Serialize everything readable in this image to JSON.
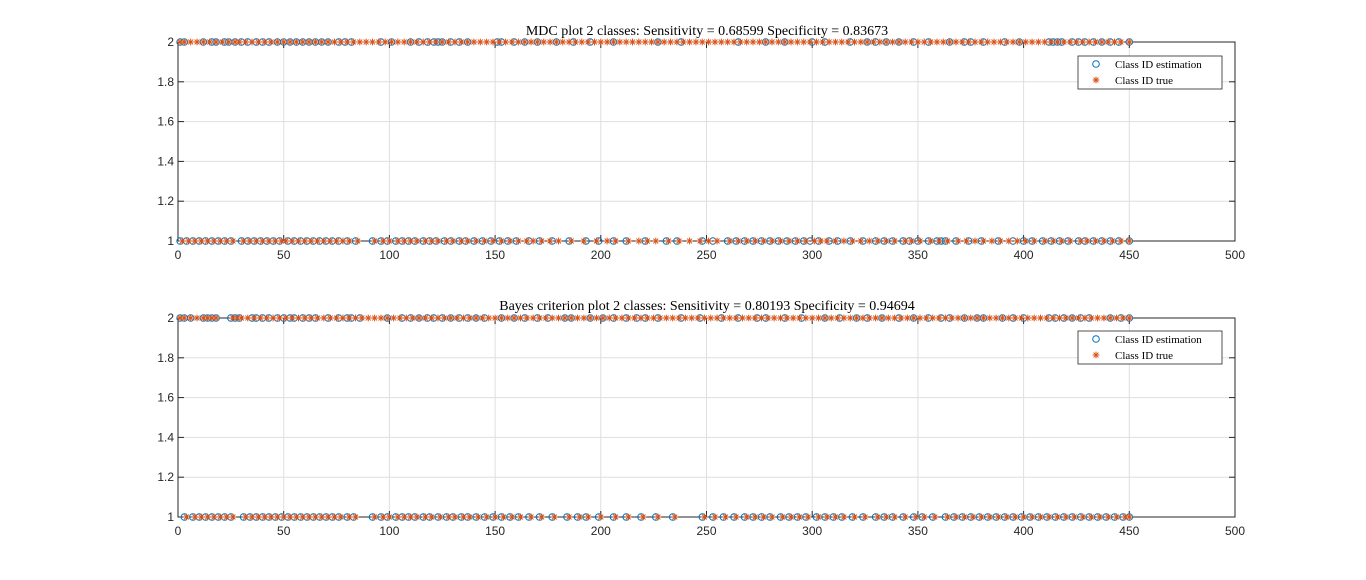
{
  "colors": {
    "estimation": "#0072BD",
    "true": "#D95319",
    "grid": "#DFDFDF",
    "axis": "#262626"
  },
  "legend": {
    "estimation_label": "Class ID estimation",
    "true_label": "Class ID true",
    "placement": "top-right"
  },
  "chart_data": [
    {
      "type": "scatter",
      "title": "MDC plot 2 classes: Sensitivity = 0.68599 Specificity = 0.83673",
      "xlim": [
        0,
        500
      ],
      "ylim": [
        1,
        2
      ],
      "xticks": [
        "0",
        "50",
        "100",
        "150",
        "200",
        "250",
        "300",
        "350",
        "400",
        "450",
        "500"
      ],
      "yticks": [
        "1",
        "1.2",
        "1.4",
        "1.6",
        "1.8",
        "2"
      ],
      "grid": true,
      "legend_placement": "top-right",
      "series": [
        {
          "name": "Class ID estimation",
          "marker": "circle",
          "class2_x": [
            1,
            3,
            12,
            16,
            18,
            22,
            24,
            27,
            30,
            33,
            37,
            40,
            43,
            47,
            50,
            53,
            56,
            59,
            62,
            65,
            68,
            71,
            76,
            79,
            82,
            96,
            101,
            110,
            114,
            118,
            121,
            123,
            125,
            129,
            133,
            137,
            151,
            153,
            159,
            164,
            170,
            179,
            187,
            195,
            206,
            227,
            238,
            265,
            278,
            287,
            300,
            306,
            318,
            326,
            330,
            335,
            341,
            348,
            355,
            365,
            372,
            375,
            381,
            391,
            398,
            412,
            414,
            416,
            418,
            423,
            426,
            429,
            433,
            437,
            441,
            445,
            450
          ],
          "class1_x": [
            1,
            4,
            7,
            10,
            13,
            16,
            19,
            22,
            25,
            30,
            33,
            36,
            39,
            42,
            45,
            48,
            52,
            55,
            58,
            61,
            64,
            67,
            70,
            73,
            76,
            80,
            84,
            92,
            96,
            99,
            103,
            106,
            109,
            112,
            116,
            119,
            122,
            126,
            129,
            133,
            136,
            140,
            144,
            148,
            152,
            156,
            160,
            166,
            171,
            177,
            185,
            193,
            199,
            206,
            212,
            221,
            231,
            236,
            248,
            253,
            260,
            264,
            268,
            272,
            276,
            280,
            284,
            288,
            292,
            296,
            299,
            303,
            308,
            312,
            318,
            324,
            330,
            334,
            338,
            343,
            346,
            350,
            355,
            359,
            361,
            363,
            368,
            374,
            380,
            388,
            395,
            400,
            404,
            409,
            413,
            417,
            421,
            426,
            429,
            433,
            437,
            441,
            445,
            450
          ]
        },
        {
          "name": "Class ID true",
          "marker": "asterisk",
          "class2_x": [
            1,
            3,
            6,
            9,
            12,
            15,
            18,
            21,
            24,
            27,
            29,
            32,
            35,
            38,
            41,
            44,
            47,
            50,
            53,
            56,
            59,
            62,
            65,
            68,
            71,
            74,
            77,
            80,
            83,
            86,
            89,
            92,
            95,
            98,
            101,
            104,
            107,
            110,
            113,
            116,
            119,
            122,
            125,
            128,
            131,
            134,
            137,
            140,
            143,
            146,
            149,
            152,
            155,
            158,
            161,
            164,
            167,
            170,
            173,
            176,
            179,
            182,
            185,
            188,
            191,
            194,
            197,
            200,
            203,
            206,
            209,
            212,
            215,
            218,
            221,
            224,
            227,
            230,
            233,
            236,
            239,
            242,
            245,
            248,
            251,
            254,
            257,
            260,
            263,
            266,
            269,
            272,
            275,
            278,
            281,
            284,
            287,
            290,
            293,
            296,
            299,
            302,
            305,
            308,
            311,
            314,
            317,
            320,
            323,
            326,
            329,
            332,
            335,
            338,
            341,
            344,
            347,
            350,
            353,
            356,
            359,
            362,
            365,
            368,
            371,
            374,
            377,
            380,
            383,
            386,
            389,
            392,
            395,
            398,
            401,
            404,
            407,
            410,
            413,
            416,
            419,
            422,
            425,
            428,
            431,
            434,
            437,
            440,
            443,
            446,
            450
          ],
          "class1_x": [
            2,
            5,
            8,
            11,
            14,
            17,
            20,
            23,
            26,
            31,
            34,
            37,
            40,
            43,
            46,
            49,
            51,
            54,
            57,
            60,
            63,
            66,
            69,
            72,
            75,
            78,
            81,
            85,
            93,
            97,
            100,
            104,
            107,
            110,
            113,
            117,
            120,
            123,
            127,
            130,
            134,
            137,
            141,
            145,
            149,
            153,
            157,
            161,
            165,
            168,
            172,
            176,
            180,
            186,
            192,
            198,
            203,
            207,
            213,
            218,
            222,
            226,
            232,
            237,
            242,
            247,
            251,
            255,
            261,
            265,
            269,
            273,
            277,
            281,
            285,
            289,
            293,
            297,
            301,
            304,
            307,
            311,
            315,
            319,
            323,
            327,
            331,
            335,
            339,
            344,
            347,
            351,
            356,
            360,
            364,
            369,
            373,
            377,
            381,
            385,
            389,
            393,
            397,
            401,
            405,
            410,
            414,
            418,
            422,
            427,
            430,
            434,
            438,
            442,
            446,
            450
          ]
        }
      ]
    },
    {
      "type": "scatter",
      "title": "Bayes criterion plot 2 classes: Sensitivity = 0.80193 Specificity = 0.94694",
      "xlim": [
        0,
        500
      ],
      "ylim": [
        1,
        2
      ],
      "xticks": [
        "0",
        "50",
        "100",
        "150",
        "200",
        "250",
        "300",
        "350",
        "400",
        "450",
        "500"
      ],
      "yticks": [
        "1",
        "1.2",
        "1.4",
        "1.6",
        "1.8",
        "2"
      ],
      "grid": true,
      "legend_placement": "top-right",
      "series": [
        {
          "name": "Class ID estimation",
          "marker": "circle",
          "class2_x": [
            1,
            3,
            6,
            12,
            14,
            16,
            18,
            25,
            27,
            29,
            35,
            37,
            40,
            43,
            47,
            50,
            53,
            55,
            59,
            62,
            65,
            71,
            76,
            80,
            82,
            86,
            99,
            106,
            110,
            114,
            118,
            121,
            125,
            129,
            133,
            137,
            141,
            145,
            153,
            159,
            164,
            170,
            175,
            183,
            186,
            195,
            201,
            206,
            212,
            217,
            221,
            227,
            238,
            247,
            257,
            265,
            274,
            278,
            287,
            295,
            306,
            313,
            321,
            326,
            333,
            341,
            348,
            355,
            361,
            365,
            372,
            378,
            381,
            390,
            395,
            400,
            412,
            415,
            419,
            423,
            427,
            431,
            441,
            446,
            450
          ],
          "class1_x": [
            3,
            7,
            10,
            13,
            16,
            19,
            22,
            25,
            31,
            34,
            37,
            40,
            43,
            46,
            49,
            52,
            55,
            58,
            61,
            64,
            67,
            70,
            73,
            76,
            80,
            83,
            92,
            96,
            99,
            103,
            106,
            109,
            112,
            116,
            119,
            123,
            127,
            130,
            134,
            137,
            141,
            145,
            149,
            153,
            157,
            161,
            166,
            171,
            177,
            184,
            189,
            193,
            199,
            206,
            212,
            219,
            226,
            234,
            248,
            253,
            258,
            263,
            268,
            272,
            276,
            280,
            285,
            289,
            293,
            297,
            302,
            306,
            310,
            314,
            319,
            324,
            330,
            334,
            338,
            343,
            348,
            352,
            357,
            363,
            367,
            371,
            375,
            379,
            383,
            387,
            391,
            395,
            399,
            403,
            407,
            411,
            415,
            419,
            423,
            427,
            431,
            435,
            439,
            443,
            447,
            450
          ]
        },
        {
          "name": "Class ID true",
          "marker": "asterisk",
          "class2_x": [
            1,
            3,
            6,
            9,
            12,
            14,
            16,
            18,
            26,
            28,
            30,
            33,
            36,
            39,
            42,
            45,
            48,
            51,
            54,
            57,
            60,
            63,
            66,
            69,
            72,
            75,
            78,
            81,
            84,
            87,
            90,
            93,
            96,
            99,
            102,
            105,
            108,
            111,
            114,
            117,
            120,
            123,
            126,
            129,
            132,
            135,
            138,
            141,
            144,
            147,
            150,
            153,
            156,
            159,
            162,
            165,
            168,
            171,
            174,
            177,
            180,
            183,
            186,
            189,
            192,
            195,
            198,
            201,
            204,
            207,
            210,
            213,
            216,
            219,
            222,
            225,
            228,
            231,
            234,
            237,
            240,
            243,
            246,
            249,
            252,
            255,
            258,
            261,
            264,
            267,
            270,
            273,
            276,
            279,
            282,
            285,
            288,
            291,
            294,
            297,
            300,
            303,
            306,
            309,
            312,
            315,
            318,
            321,
            324,
            327,
            330,
            333,
            336,
            339,
            342,
            345,
            348,
            351,
            354,
            357,
            360,
            363,
            366,
            369,
            372,
            375,
            378,
            381,
            384,
            387,
            390,
            393,
            396,
            399,
            402,
            405,
            408,
            411,
            414,
            417,
            420,
            423,
            426,
            429,
            432,
            435,
            438,
            441,
            444,
            447,
            450
          ],
          "class1_x": [
            4,
            8,
            11,
            14,
            17,
            20,
            23,
            26,
            32,
            35,
            38,
            41,
            44,
            47,
            50,
            53,
            56,
            59,
            62,
            65,
            68,
            71,
            74,
            77,
            81,
            84,
            93,
            97,
            100,
            104,
            107,
            110,
            113,
            117,
            120,
            124,
            128,
            131,
            135,
            138,
            142,
            146,
            150,
            154,
            158,
            162,
            167,
            172,
            178,
            185,
            190,
            194,
            200,
            207,
            213,
            220,
            227,
            235,
            249,
            254,
            259,
            264,
            269,
            273,
            277,
            281,
            286,
            290,
            294,
            298,
            303,
            307,
            311,
            315,
            320,
            325,
            331,
            335,
            339,
            344,
            349,
            353,
            358,
            364,
            368,
            372,
            376,
            380,
            384,
            388,
            392,
            396,
            400,
            404,
            408,
            412,
            416,
            420,
            424,
            428,
            432,
            436,
            440,
            444,
            448,
            450
          ]
        }
      ]
    }
  ]
}
